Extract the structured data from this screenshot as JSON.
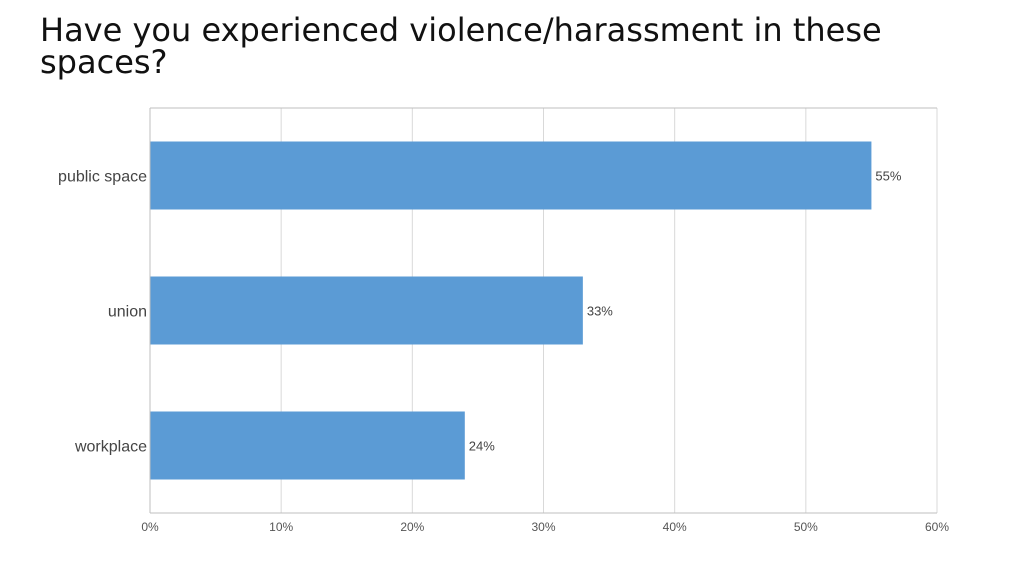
{
  "title": "Have you experienced violence/harassment in these spaces?",
  "chart_data": {
    "type": "bar",
    "orientation": "horizontal",
    "title": "",
    "categories": [
      "public space",
      "union",
      "workplace"
    ],
    "values": [
      55,
      33,
      24
    ],
    "data_labels": [
      "55%",
      "33%",
      "24%"
    ],
    "xlim": [
      0,
      60
    ],
    "xticks": [
      0,
      10,
      20,
      30,
      40,
      50,
      60
    ],
    "xtick_labels": [
      "0%",
      "10%",
      "20%",
      "30%",
      "40%",
      "50%",
      "60%"
    ],
    "xlabel": "",
    "ylabel": "",
    "grid": true,
    "legend": false,
    "bar_color": "#5b9bd5",
    "grid_color": "#d9d9d9",
    "axis_color": "#bfbfbf"
  }
}
